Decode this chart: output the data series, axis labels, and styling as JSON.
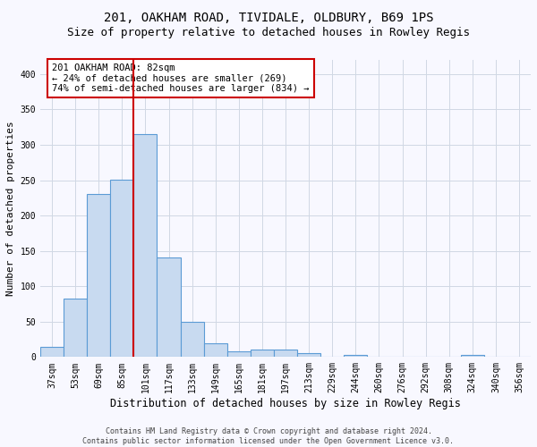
{
  "title1": "201, OAKHAM ROAD, TIVIDALE, OLDBURY, B69 1PS",
  "title2": "Size of property relative to detached houses in Rowley Regis",
  "xlabel": "Distribution of detached houses by size in Rowley Regis",
  "ylabel": "Number of detached properties",
  "footnote1": "Contains HM Land Registry data © Crown copyright and database right 2024.",
  "footnote2": "Contains public sector information licensed under the Open Government Licence v3.0.",
  "categories": [
    "37sqm",
    "53sqm",
    "69sqm",
    "85sqm",
    "101sqm",
    "117sqm",
    "133sqm",
    "149sqm",
    "165sqm",
    "181sqm",
    "197sqm",
    "213sqm",
    "229sqm",
    "244sqm",
    "260sqm",
    "276sqm",
    "292sqm",
    "308sqm",
    "324sqm",
    "340sqm",
    "356sqm"
  ],
  "values": [
    15,
    83,
    231,
    251,
    315,
    141,
    50,
    20,
    8,
    10,
    10,
    5,
    0,
    3,
    0,
    0,
    0,
    0,
    3,
    0,
    0
  ],
  "bar_color": "#c8daf0",
  "bar_edge_color": "#5b9bd5",
  "grid_color": "#d0d8e4",
  "annotation_line1": "201 OAKHAM ROAD: 82sqm",
  "annotation_line2": "← 24% of detached houses are smaller (269)",
  "annotation_line3": "74% of semi-detached houses are larger (834) →",
  "vline_x": 3.5,
  "vline_color": "#cc0000",
  "annotation_box_color": "#ffffff",
  "annotation_box_edge_color": "#cc0000",
  "bg_color": "#f8f8ff",
  "ylim": [
    0,
    420
  ],
  "title1_fontsize": 10,
  "title2_fontsize": 9,
  "xlabel_fontsize": 8.5,
  "ylabel_fontsize": 8,
  "annotation_fontsize": 7.5,
  "tick_fontsize": 7,
  "footnote_fontsize": 6
}
